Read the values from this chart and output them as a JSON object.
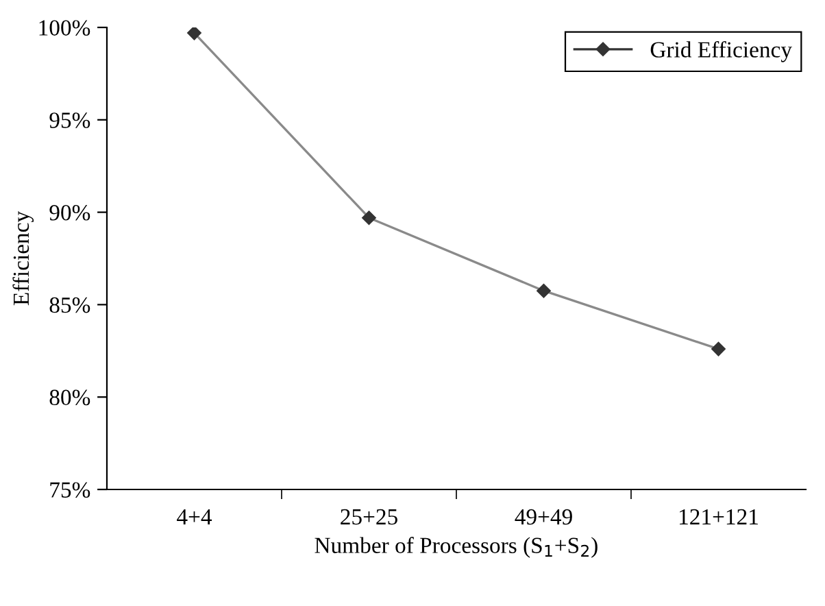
{
  "chart_data": {
    "type": "line",
    "xlabel": "Number of Processors (S$_{1}$+S$_{2}$)",
    "ylabel": "Efficiency",
    "categories": [
      "4+4",
      "25+25",
      "49+49",
      "121+121"
    ],
    "series": [
      {
        "name": "Grid Efficiency",
        "color": "#333333",
        "values": [
          99.7,
          89.7,
          85.75,
          82.6
        ]
      }
    ],
    "ylim": [
      75,
      100
    ],
    "yticks": [
      {
        "value": 75,
        "label": "75%"
      },
      {
        "value": 80,
        "label": "80%"
      },
      {
        "value": 85,
        "label": "85%"
      },
      {
        "value": 90,
        "label": "90%"
      },
      {
        "value": 95,
        "label": "95%"
      },
      {
        "value": 100,
        "label": "100%"
      }
    ],
    "grid": false,
    "legend": "top right",
    "marker": "diamond",
    "line_style": "solid"
  }
}
